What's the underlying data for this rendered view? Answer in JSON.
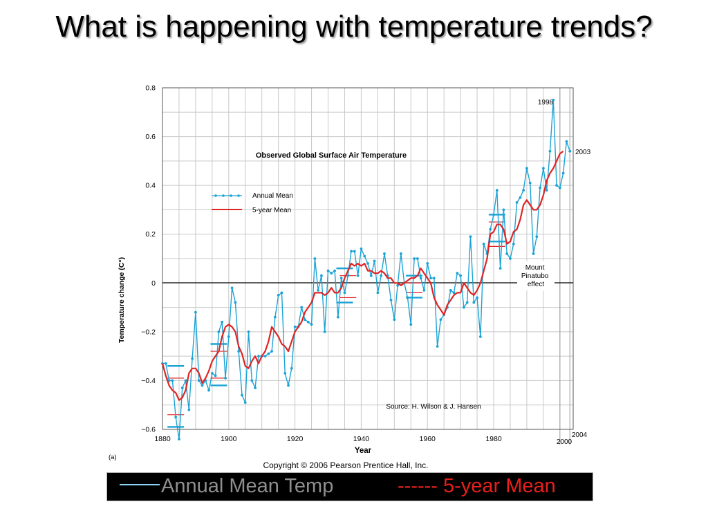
{
  "slide": {
    "title": "What is happening with temperature trends?",
    "copyright": "Copyright © 2006 Pearson Prentice Hall, Inc.",
    "figure_label": "(a)"
  },
  "legend_bar": {
    "annual_label": "Annual Mean Temp",
    "five_label": "------ 5-year Mean"
  },
  "colors": {
    "annual": "#1ba3d6",
    "five_year": "#e02424",
    "grid": "#c8c8c8",
    "legend_bar_bg": "#000000"
  },
  "chart_data": {
    "type": "line",
    "title": "Observed Global Surface Air Temperature",
    "xlabel": "Year",
    "ylabel": "Temperature change (C°)",
    "xlim": [
      1880,
      2004
    ],
    "ylim": [
      -0.6,
      0.8
    ],
    "xticks": [
      1880,
      1900,
      1920,
      1940,
      1960,
      1980
    ],
    "yticks": [
      -0.6,
      -0.4,
      -0.2,
      0,
      0.2,
      0.4,
      0.6,
      0.8
    ],
    "ytick_labels": [
      "−0.6",
      "−0.4",
      "−0.2",
      "0",
      "0.2",
      "0.4",
      "0.6",
      "0.8"
    ],
    "grid": true,
    "legend": {
      "position": "top-left",
      "entries": [
        "Annual Mean",
        "5-year Mean"
      ]
    },
    "source": "Source:  H. Wilson & J. Hansen",
    "annotations": [
      "1998",
      "2003",
      "Mount Pinatubo effect",
      "2000",
      "2004"
    ],
    "series": [
      {
        "name": "Annual Mean",
        "x": [
          1880,
          1881,
          1882,
          1883,
          1884,
          1885,
          1886,
          1887,
          1888,
          1889,
          1890,
          1891,
          1892,
          1893,
          1894,
          1895,
          1896,
          1897,
          1898,
          1899,
          1900,
          1901,
          1902,
          1903,
          1904,
          1905,
          1906,
          1907,
          1908,
          1909,
          1910,
          1911,
          1912,
          1913,
          1914,
          1915,
          1916,
          1917,
          1918,
          1919,
          1920,
          1921,
          1922,
          1923,
          1924,
          1925,
          1926,
          1927,
          1928,
          1929,
          1930,
          1931,
          1932,
          1933,
          1934,
          1935,
          1936,
          1937,
          1938,
          1939,
          1940,
          1941,
          1942,
          1943,
          1944,
          1945,
          1946,
          1947,
          1948,
          1949,
          1950,
          1951,
          1952,
          1953,
          1954,
          1955,
          1956,
          1957,
          1958,
          1959,
          1960,
          1961,
          1962,
          1963,
          1964,
          1965,
          1966,
          1967,
          1968,
          1969,
          1970,
          1971,
          1972,
          1973,
          1974,
          1975,
          1976,
          1977,
          1978,
          1979,
          1980,
          1981,
          1982,
          1983,
          1984,
          1985,
          1986,
          1987,
          1988,
          1989,
          1990,
          1991,
          1992,
          1993,
          1994,
          1995,
          1996,
          1997,
          1998,
          1999,
          2000,
          2001,
          2002,
          2003
        ],
        "values": [
          -0.33,
          -0.33,
          -0.4,
          -0.4,
          -0.55,
          -0.64,
          -0.43,
          -0.4,
          -0.52,
          -0.31,
          -0.12,
          -0.4,
          -0.42,
          -0.4,
          -0.44,
          -0.37,
          -0.38,
          -0.2,
          -0.16,
          -0.39,
          -0.22,
          -0.02,
          -0.08,
          -0.28,
          -0.46,
          -0.49,
          -0.2,
          -0.4,
          -0.43,
          -0.3,
          -0.3,
          -0.3,
          -0.29,
          -0.28,
          -0.14,
          -0.05,
          -0.04,
          -0.37,
          -0.42,
          -0.35,
          -0.18,
          -0.18,
          -0.1,
          -0.15,
          -0.16,
          -0.17,
          0.1,
          -0.03,
          0.03,
          -0.2,
          0.05,
          0.04,
          0.05,
          -0.14,
          0.02,
          -0.04,
          0.03,
          0.13,
          0.13,
          0.03,
          0.14,
          0.11,
          0.08,
          0.03,
          0.09,
          -0.04,
          0.03,
          0.12,
          0.03,
          -0.07,
          -0.15,
          -0.01,
          0.12,
          0.0,
          -0.06,
          -0.17,
          0.1,
          0.1,
          0.02,
          -0.03,
          0.08,
          0.02,
          0.02,
          -0.26,
          -0.15,
          -0.13,
          -0.1,
          -0.03,
          -0.04,
          0.04,
          0.03,
          -0.1,
          -0.08,
          0.19,
          -0.08,
          -0.06,
          -0.22,
          0.16,
          0.12,
          0.22,
          0.28,
          0.38,
          0.06,
          0.3,
          0.12,
          0.1,
          0.16,
          0.33,
          0.35,
          0.38,
          0.47,
          0.41,
          0.12,
          0.19,
          0.39,
          0.47,
          0.38,
          0.54,
          0.75,
          0.4,
          0.39,
          0.45,
          0.58,
          0.54
        ]
      },
      {
        "name": "5-year Mean",
        "x": [
          1880,
          1881,
          1882,
          1883,
          1884,
          1885,
          1886,
          1887,
          1888,
          1889,
          1890,
          1891,
          1892,
          1893,
          1894,
          1895,
          1896,
          1897,
          1898,
          1899,
          1900,
          1901,
          1902,
          1903,
          1904,
          1905,
          1906,
          1907,
          1908,
          1909,
          1910,
          1911,
          1912,
          1913,
          1914,
          1915,
          1916,
          1917,
          1918,
          1919,
          1920,
          1921,
          1922,
          1923,
          1924,
          1925,
          1926,
          1927,
          1928,
          1929,
          1930,
          1931,
          1932,
          1933,
          1934,
          1935,
          1936,
          1937,
          1938,
          1939,
          1940,
          1941,
          1942,
          1943,
          1944,
          1945,
          1946,
          1947,
          1948,
          1949,
          1950,
          1951,
          1952,
          1953,
          1954,
          1955,
          1956,
          1957,
          1958,
          1959,
          1960,
          1961,
          1962,
          1963,
          1964,
          1965,
          1966,
          1967,
          1968,
          1969,
          1970,
          1971,
          1972,
          1973,
          1974,
          1975,
          1976,
          1977,
          1978,
          1979,
          1980,
          1981,
          1982,
          1983,
          1984,
          1985,
          1986,
          1987,
          1988,
          1989,
          1990,
          1991,
          1992,
          1993,
          1994,
          1995,
          1996,
          1997,
          1998,
          1999,
          2000,
          2001
        ],
        "values": [
          -0.33,
          -0.38,
          -0.42,
          -0.44,
          -0.45,
          -0.48,
          -0.47,
          -0.44,
          -0.37,
          -0.35,
          -0.35,
          -0.37,
          -0.41,
          -0.39,
          -0.36,
          -0.32,
          -0.3,
          -0.28,
          -0.22,
          -0.18,
          -0.17,
          -0.18,
          -0.2,
          -0.26,
          -0.29,
          -0.34,
          -0.35,
          -0.32,
          -0.3,
          -0.33,
          -0.3,
          -0.28,
          -0.24,
          -0.18,
          -0.2,
          -0.22,
          -0.25,
          -0.26,
          -0.28,
          -0.24,
          -0.2,
          -0.18,
          -0.16,
          -0.12,
          -0.1,
          -0.08,
          -0.04,
          -0.04,
          -0.04,
          -0.05,
          -0.04,
          -0.02,
          -0.04,
          -0.04,
          -0.02,
          0.02,
          0.05,
          0.08,
          0.07,
          0.08,
          0.07,
          0.08,
          0.05,
          0.05,
          0.04,
          0.04,
          0.05,
          0.04,
          0.02,
          0.02,
          0.0,
          0.0,
          -0.01,
          0.0,
          0.01,
          0.02,
          0.02,
          0.03,
          0.06,
          0.04,
          0.02,
          0.0,
          -0.06,
          -0.09,
          -0.11,
          -0.13,
          -0.09,
          -0.07,
          -0.05,
          -0.04,
          -0.04,
          0.0,
          -0.02,
          -0.04,
          -0.05,
          -0.03,
          0.0,
          0.05,
          0.1,
          0.2,
          0.21,
          0.24,
          0.24,
          0.22,
          0.16,
          0.17,
          0.21,
          0.22,
          0.26,
          0.32,
          0.34,
          0.32,
          0.3,
          0.3,
          0.32,
          0.36,
          0.42,
          0.45,
          0.47,
          0.5,
          0.53,
          0.54
        ]
      }
    ]
  }
}
